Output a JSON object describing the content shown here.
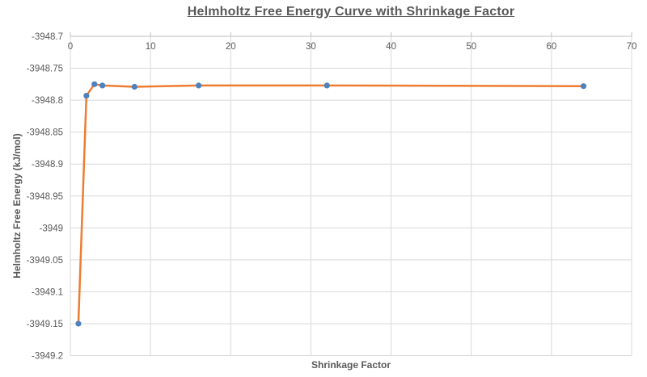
{
  "title": "Helmholtz Free Energy Curve with Shrinkage Factor",
  "chart_data": {
    "type": "line",
    "title": "Helmholtz Free Energy Curve with Shrinkage Factor",
    "xlabel": "Shrinkage Factor",
    "ylabel": "Helmholtz Free Energy (kJ/mol)",
    "x": [
      1,
      2,
      3,
      4,
      8,
      16,
      32,
      64
    ],
    "y": [
      -3949.15,
      -3948.793,
      -3948.775,
      -3948.777,
      -3948.779,
      -3948.777,
      -3948.777,
      -3948.778
    ],
    "xlim": [
      0,
      70
    ],
    "ylim": [
      -3949.2,
      -3948.7
    ],
    "x_ticks": [
      0,
      10,
      20,
      30,
      40,
      50,
      60,
      70
    ],
    "x_tick_labels": [
      "0",
      "10",
      "20",
      "30",
      "40",
      "50",
      "60",
      "70"
    ],
    "y_ticks": [
      -3948.7,
      -3948.75,
      -3948.8,
      -3948.85,
      -3948.9,
      -3948.95,
      -3949,
      -3949.05,
      -3949.1,
      -3949.15,
      -3949.2
    ],
    "y_tick_labels": [
      "-3948.7",
      "-3948.75",
      "-3948.8",
      "-3948.85",
      "-3948.9",
      "-3948.95",
      "-3949",
      "-3949.05",
      "-3949.1",
      "-3949.15",
      "-3949.2"
    ],
    "grid": true,
    "legend": false,
    "legend_position": "none",
    "line_color": "#ED7D31",
    "marker_color": "#4E81BD",
    "gridline_color": "#D9D9D9",
    "axis_line_color": "#BFBFBF",
    "text_color": "#595959"
  }
}
